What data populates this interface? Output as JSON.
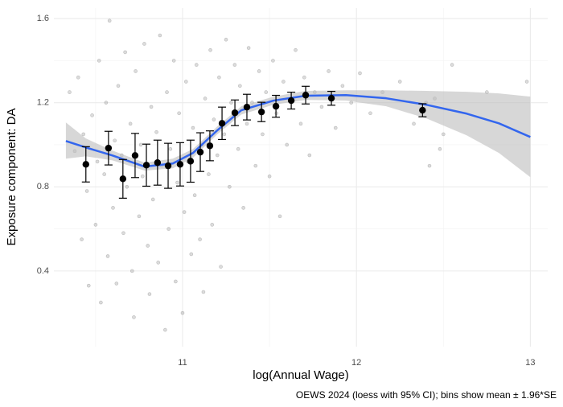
{
  "chart_data": {
    "type": "scatter",
    "caption": "OEWS 2024 (loess with 95% CI); bins show mean ± 1.96*SE",
    "xlabel": "log(Annual Wage)",
    "ylabel": "Exposure component: DA",
    "xlim": [
      10.26,
      13.1
    ],
    "ylim": [
      0.04,
      1.65
    ],
    "xticks": [
      11,
      12,
      13
    ],
    "yticks": [
      0.4,
      0.8,
      1.2,
      1.6
    ],
    "x_minor_ticks": [
      10.5,
      11.5,
      12.5
    ],
    "y_minor_ticks": [
      0.6,
      1.0,
      1.4
    ],
    "grid": true,
    "points": {
      "color": "#8c8c8c",
      "x": [
        10.35,
        10.38,
        10.4,
        10.42,
        10.43,
        10.45,
        10.46,
        10.48,
        10.5,
        10.51,
        10.52,
        10.53,
        10.55,
        10.56,
        10.57,
        10.58,
        10.6,
        10.61,
        10.62,
        10.63,
        10.65,
        10.66,
        10.67,
        10.68,
        10.7,
        10.71,
        10.72,
        10.73,
        10.75,
        10.76,
        10.77,
        10.78,
        10.8,
        10.81,
        10.82,
        10.83,
        10.85,
        10.86,
        10.87,
        10.88,
        10.9,
        10.91,
        10.92,
        10.93,
        10.95,
        10.96,
        10.97,
        10.98,
        11.0,
        11.01,
        11.02,
        11.03,
        11.05,
        11.06,
        11.07,
        11.08,
        11.1,
        11.11,
        11.12,
        11.13,
        11.15,
        11.16,
        11.17,
        11.18,
        11.2,
        11.21,
        11.22,
        11.24,
        11.25,
        11.27,
        11.28,
        11.3,
        11.32,
        11.33,
        11.35,
        11.37,
        11.38,
        11.4,
        11.42,
        11.44,
        11.46,
        11.48,
        11.5,
        11.52,
        11.54,
        11.56,
        11.58,
        11.6,
        11.62,
        11.65,
        11.68,
        11.7,
        11.73,
        11.76,
        11.8,
        11.84,
        11.88,
        11.92,
        11.97,
        12.02,
        12.08,
        12.15,
        12.25,
        12.33,
        12.4,
        12.45,
        12.48,
        12.5,
        12.55,
        12.75,
        12.98,
        12.42
      ],
      "y": [
        1.25,
        0.97,
        1.32,
        0.55,
        1.05,
        0.78,
        0.33,
        1.14,
        0.62,
        0.92,
        1.4,
        0.25,
        0.86,
        1.2,
        0.47,
        1.59,
        0.7,
        1.02,
        0.34,
        1.28,
        0.95,
        0.58,
        1.44,
        0.8,
        1.1,
        0.4,
        0.18,
        1.35,
        0.66,
        1.0,
        0.85,
        1.48,
        0.52,
        0.29,
        1.18,
        0.74,
        1.06,
        0.44,
        1.52,
        0.9,
        0.12,
        1.25,
        0.6,
        0.98,
        1.4,
        0.35,
        0.82,
        1.15,
        0.2,
        0.68,
        1.3,
        0.92,
        0.48,
        1.08,
        0.76,
        1.38,
        0.55,
        1.0,
        0.3,
        1.22,
        0.86,
        1.45,
        0.62,
        1.12,
        0.95,
        1.32,
        0.42,
        1.05,
        1.5,
        0.8,
        1.2,
        1.38,
        0.98,
        1.28,
        0.7,
        1.1,
        1.46,
        1.2,
        0.9,
        1.35,
        1.05,
        1.25,
        0.85,
        1.4,
        1.15,
        0.66,
        1.3,
        1.0,
        1.22,
        1.45,
        1.1,
        1.32,
        0.95,
        1.25,
        1.18,
        1.35,
        1.08,
        1.28,
        1.2,
        1.34,
        1.15,
        1.25,
        1.3,
        1.1,
        1.2,
        1.22,
        0.98,
        1.05,
        1.38,
        1.25,
        1.3,
        0.9
      ]
    },
    "loess": {
      "color": "#3366ee",
      "band_color": "#bdbdbd",
      "x": [
        10.329,
        10.444,
        10.597,
        10.782,
        10.944,
        11.06,
        11.199,
        11.338,
        11.523,
        11.708,
        11.94,
        12.171,
        12.403,
        12.634,
        12.819,
        13.0
      ],
      "values": [
        1.018,
        0.987,
        0.949,
        0.896,
        0.911,
        0.961,
        1.068,
        1.164,
        1.21,
        1.233,
        1.236,
        1.221,
        1.19,
        1.148,
        1.102,
        1.037
      ],
      "lower": [
        0.934,
        0.945,
        0.926,
        0.877,
        0.888,
        0.938,
        1.049,
        1.144,
        1.19,
        1.213,
        1.21,
        1.183,
        1.125,
        1.045,
        0.961,
        0.846
      ],
      "upper": [
        1.106,
        1.03,
        0.972,
        0.915,
        0.934,
        0.98,
        1.087,
        1.183,
        1.229,
        1.256,
        1.259,
        1.259,
        1.256,
        1.252,
        1.244,
        1.229
      ]
    },
    "binned": {
      "color": "#000000",
      "x": [
        10.444,
        10.574,
        10.657,
        10.727,
        10.792,
        10.856,
        10.917,
        10.986,
        11.046,
        11.102,
        11.157,
        11.227,
        11.301,
        11.37,
        11.454,
        11.537,
        11.625,
        11.708,
        11.856,
        12.38
      ],
      "values": [
        0.907,
        0.984,
        0.838,
        0.949,
        0.903,
        0.915,
        0.9,
        0.907,
        0.922,
        0.965,
        0.995,
        1.102,
        1.152,
        1.179,
        1.156,
        1.183,
        1.21,
        1.236,
        1.221,
        1.164
      ],
      "errors": [
        0.084,
        0.08,
        0.092,
        0.105,
        0.1,
        0.107,
        0.107,
        0.103,
        0.1,
        0.092,
        0.071,
        0.077,
        0.061,
        0.061,
        0.046,
        0.052,
        0.04,
        0.042,
        0.033,
        0.031
      ]
    }
  }
}
